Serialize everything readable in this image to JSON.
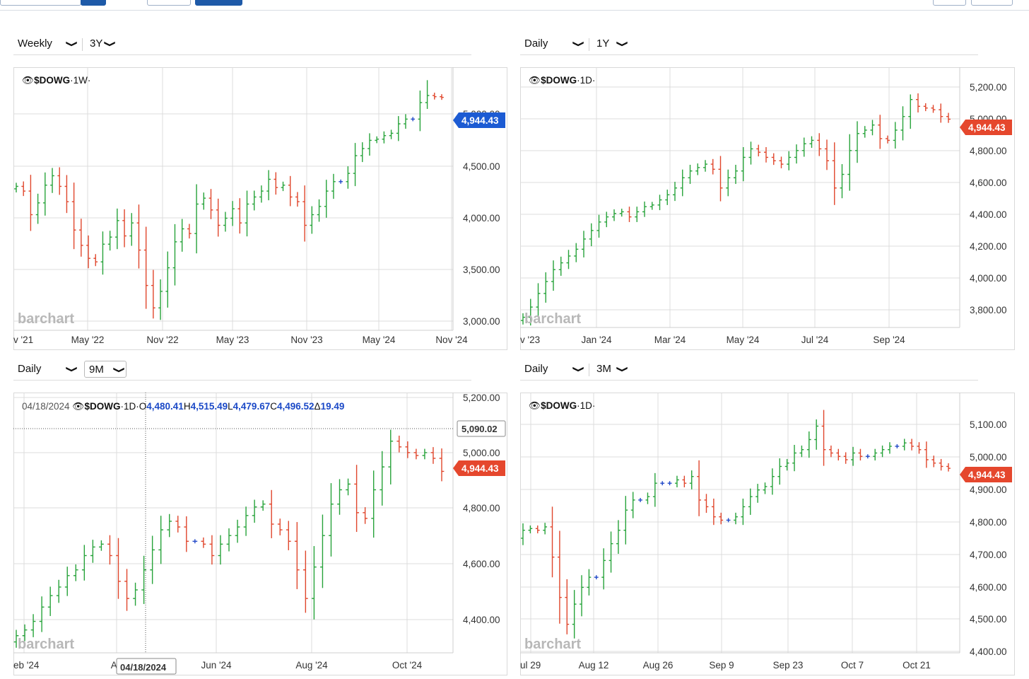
{
  "colors": {
    "up": "#27a33a",
    "down": "#e0462c",
    "neutral": "#2249c9",
    "last_tag_blue": "#1c5bd3",
    "last_tag_red": "#e5472d",
    "grid": "#dcdcdc"
  },
  "icons": {
    "eye": "eye-icon",
    "chevron": "chevron-down-icon"
  },
  "watermark": "barchart",
  "panels": [
    {
      "id": "weekly",
      "interval": "Weekly",
      "period": "3Y",
      "symbol_label": "$DOWG",
      "symbol_suffix": "·1W·",
      "last_price": "4,944.43",
      "last_tag_color": "#1c5bd3",
      "chart_data": {
        "type": "ohlc",
        "series": "$DOWG",
        "timeframe": "1W",
        "x_tick_labels": [
          "v '21",
          "May '22",
          "Nov '22",
          "May '23",
          "Nov '23",
          "May '24",
          "Nov '24"
        ],
        "y_tick_labels": [
          "5,000.00",
          "4,500.00",
          "4,000.00",
          "3,500.00",
          "3,000.00"
        ],
        "ylim": [
          2970,
          5200
        ],
        "closes": [
          4190,
          4150,
          3950,
          4050,
          4200,
          4280,
          4190,
          4060,
          3820,
          3690,
          3580,
          3550,
          3700,
          3760,
          3900,
          3770,
          3880,
          3650,
          3350,
          3160,
          3300,
          3500,
          3720,
          3830,
          3790,
          4040,
          4090,
          3990,
          3860,
          3920,
          4000,
          3880,
          4040,
          4100,
          4150,
          4250,
          4180,
          4200,
          4100,
          4060,
          3860,
          3950,
          4020,
          4150,
          4230,
          4230,
          4300,
          4450,
          4510,
          4580,
          4590,
          4620,
          4640,
          4720,
          4760,
          4760,
          4900,
          4960,
          4950,
          4944.43
        ],
        "hl_extremes": {
          "low_index": 19,
          "low": 3070,
          "high_index": 57,
          "high": 5090
        }
      }
    },
    {
      "id": "daily1y",
      "interval": "Daily",
      "period": "1Y",
      "symbol_label": "$DOWG",
      "symbol_suffix": "·1D·",
      "last_price": "4,944.43",
      "last_tag_color": "#e5472d",
      "chart_data": {
        "type": "ohlc",
        "series": "$DOWG",
        "timeframe": "1D",
        "x_tick_labels": [
          "v '23",
          "Jan '24",
          "Mar '24",
          "May '24",
          "Jul '24",
          "Sep '24"
        ],
        "y_tick_labels": [
          "5,200.00",
          "5,000.00",
          "4,800.00",
          "4,600.00",
          "4,400.00",
          "4,200.00",
          "4,000.00",
          "3,800.00"
        ],
        "ylim": [
          3720,
          5250
        ],
        "closes": [
          3780,
          3840,
          3920,
          3990,
          4060,
          4100,
          4140,
          4180,
          4240,
          4290,
          4340,
          4370,
          4390,
          4400,
          4370,
          4400,
          4430,
          4440,
          4470,
          4500,
          4540,
          4600,
          4640,
          4660,
          4680,
          4650,
          4540,
          4600,
          4640,
          4720,
          4770,
          4750,
          4720,
          4700,
          4680,
          4720,
          4760,
          4800,
          4820,
          4770,
          4700,
          4540,
          4620,
          4760,
          4860,
          4880,
          4910,
          4830,
          4820,
          4880,
          4960,
          5060,
          5020,
          5010,
          5000,
          4960,
          4944.43
        ],
        "hl_extremes": {
          "low_index": 41,
          "low": 4440,
          "high_index": 51,
          "high": 5090
        }
      }
    },
    {
      "id": "daily9m",
      "interval": "Daily",
      "period": "9M",
      "symbol_label": "$DOWG",
      "symbol_suffix": "·1D·",
      "hover_date": "04/18/2024",
      "crosshair_price": "5,090.02",
      "last_price": "4,944.43",
      "last_tag_color": "#e5472d",
      "ohlc_display": {
        "o_label": "O",
        "o": "4,480.41",
        "h_label": "H",
        "h": "4,515.49",
        "l_label": "L",
        "l": "4,479.67",
        "c_label": "C",
        "c": "4,496.52",
        "chg_label": "Δ",
        "chg": "19.49"
      },
      "chart_data": {
        "type": "ohlc",
        "series": "$DOWG",
        "timeframe": "1D",
        "x_tick_labels": [
          "eb '24",
          "Ap",
          "Jun '24",
          "Aug '24",
          "Oct '24"
        ],
        "y_tick_labels": [
          "5,200.00",
          "5,000.00",
          "4,800.00",
          "4,600.00",
          "4,400.00"
        ],
        "ylim": [
          4310,
          5220
        ],
        "closes": [
          4370,
          4390,
          4420,
          4470,
          4510,
          4540,
          4580,
          4600,
          4650,
          4680,
          4690,
          4650,
          4560,
          4500,
          4530,
          4600,
          4670,
          4740,
          4770,
          4750,
          4700,
          4700,
          4690,
          4650,
          4690,
          4720,
          4750,
          4790,
          4820,
          4830,
          4760,
          4740,
          4700,
          4600,
          4500,
          4610,
          4720,
          4830,
          4880,
          4900,
          4800,
          4780,
          4880,
          4960,
          5050,
          5030,
          5010,
          5000,
          5010,
          4990,
          4944.43
        ],
        "hl_extremes": {
          "low_index": 34,
          "low": 4450,
          "high_index": 44,
          "high": 5090
        }
      }
    },
    {
      "id": "daily3m",
      "interval": "Daily",
      "period": "3M",
      "symbol_label": "$DOWG",
      "symbol_suffix": "·1D·",
      "last_price": "4,944.43",
      "last_tag_color": "#e5472d",
      "chart_data": {
        "type": "ohlc",
        "series": "$DOWG",
        "timeframe": "1D",
        "x_tick_labels": [
          "ul 29",
          "Aug 12",
          "Aug 26",
          "Sep 9",
          "Sep 23",
          "Oct 7",
          "Oct 21"
        ],
        "y_tick_labels": [
          "5,100.00",
          "5,000.00",
          "4,900.00",
          "4,800.00",
          "4,700.00",
          "4,600.00",
          "4,500.00",
          "4,400.00"
        ],
        "ylim": [
          4395,
          5170
        ],
        "closes": [
          4760,
          4765,
          4760,
          4770,
          4680,
          4560,
          4480,
          4540,
          4590,
          4620,
          4620,
          4670,
          4720,
          4760,
          4820,
          4850,
          4850,
          4860,
          4900,
          4900,
          4900,
          4910,
          4900,
          4920,
          4850,
          4830,
          4800,
          4790,
          4790,
          4800,
          4830,
          4860,
          4880,
          4890,
          4920,
          4950,
          4960,
          4990,
          5000,
          5030,
          5070,
          5000,
          4990,
          4980,
          4970,
          4990,
          4980,
          4980,
          4990,
          5000,
          5010,
          5010,
          5020,
          5010,
          5000,
          4970,
          4960,
          4950,
          4944.43
        ],
        "hl_extremes": {
          "low_index": 6,
          "low": 4450,
          "high_index": 40,
          "high": 5090
        }
      }
    }
  ]
}
